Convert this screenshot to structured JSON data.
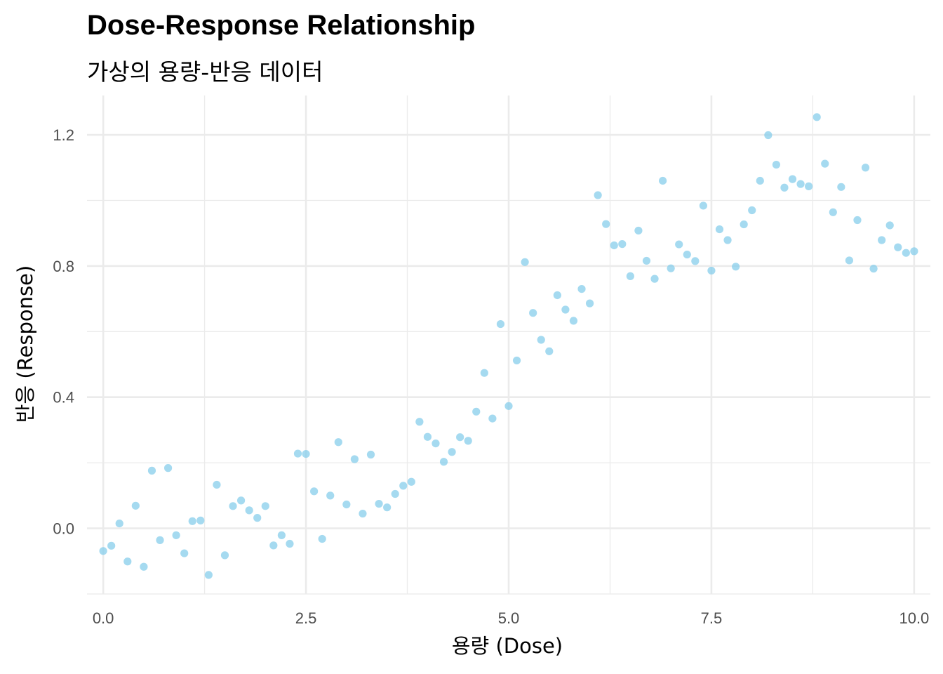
{
  "chart_data": {
    "type": "scatter",
    "title": "Dose-Response Relationship",
    "subtitle": "가상의 용량-반응 데이터",
    "xlabel": "용량 (Dose)",
    "ylabel": "반응 (Response)",
    "xlim": [
      -0.2,
      10.2
    ],
    "ylim": [
      -0.2,
      1.32
    ],
    "x_ticks": [
      0.0,
      2.5,
      5.0,
      7.5,
      10.0
    ],
    "x_tick_labels": [
      "0.0",
      "2.5",
      "5.0",
      "7.5",
      "10.0"
    ],
    "y_ticks": [
      0.0,
      0.4,
      0.8,
      1.2
    ],
    "y_tick_labels": [
      "0.0",
      "0.4",
      "0.8",
      "1.2"
    ],
    "grid": true,
    "point_color": "#87CEEB",
    "x": [
      0.0,
      0.1,
      0.2,
      0.3,
      0.4,
      0.5,
      0.6,
      0.7,
      0.8,
      0.9,
      1.0,
      1.1,
      1.2,
      1.3,
      1.4,
      1.5,
      1.6,
      1.7,
      1.8,
      1.9,
      2.0,
      2.1,
      2.2,
      2.3,
      2.4,
      2.5,
      2.6,
      2.7,
      2.8,
      2.9,
      3.0,
      3.1,
      3.2,
      3.3,
      3.4,
      3.5,
      3.6,
      3.7,
      3.8,
      3.9,
      4.0,
      4.1,
      4.2,
      4.3,
      4.4,
      4.5,
      4.6,
      4.7,
      4.8,
      4.9,
      5.0,
      5.1,
      5.2,
      5.3,
      5.4,
      5.5,
      5.6,
      5.7,
      5.8,
      5.9,
      6.0,
      6.1,
      6.2,
      6.3,
      6.4,
      6.5,
      6.6,
      6.7,
      6.8,
      6.9,
      7.0,
      7.1,
      7.2,
      7.3,
      7.4,
      7.5,
      7.6,
      7.7,
      7.8,
      7.9,
      8.0,
      8.1,
      8.2,
      8.3,
      8.4,
      8.5,
      8.6,
      8.7,
      8.8,
      8.9,
      9.0,
      9.1,
      9.2,
      9.3,
      9.4,
      9.5,
      9.6,
      9.7,
      9.8,
      9.9,
      10.0
    ],
    "y": [
      -0.069,
      -0.053,
      0.015,
      -0.101,
      0.069,
      -0.117,
      0.176,
      -0.036,
      0.184,
      -0.021,
      -0.076,
      0.022,
      0.024,
      -0.142,
      0.133,
      -0.082,
      0.068,
      0.085,
      0.055,
      0.032,
      0.068,
      -0.052,
      -0.021,
      -0.047,
      0.228,
      0.227,
      0.113,
      -0.032,
      0.1,
      0.263,
      0.073,
      0.211,
      0.045,
      0.225,
      0.075,
      0.064,
      0.105,
      0.13,
      0.142,
      0.325,
      0.279,
      0.259,
      0.203,
      0.233,
      0.278,
      0.267,
      0.356,
      0.474,
      0.335,
      0.623,
      0.373,
      0.512,
      0.812,
      0.657,
      0.575,
      0.54,
      0.711,
      0.667,
      0.633,
      0.73,
      0.686,
      1.016,
      0.928,
      0.863,
      0.867,
      0.769,
      0.908,
      0.816,
      0.761,
      1.06,
      0.793,
      0.866,
      0.835,
      0.815,
      0.984,
      0.786,
      0.912,
      0.879,
      0.798,
      0.927,
      0.97,
      1.06,
      1.199,
      1.109,
      1.039,
      1.065,
      1.05,
      1.043,
      1.254,
      1.112,
      0.964,
      1.041,
      0.817,
      0.94,
      1.1,
      0.792,
      0.879,
      0.924,
      0.857,
      0.84,
      0.845
    ]
  }
}
